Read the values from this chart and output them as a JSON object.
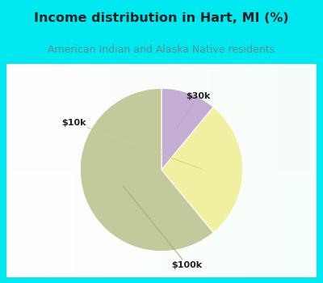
{
  "title": "Income distribution in Hart, MI (%)",
  "subtitle": "American Indian and Alaska Native residents",
  "slices": [
    {
      "label": "$30k",
      "value": 11,
      "color": "#c5aed4"
    },
    {
      "label": "$10k",
      "value": 28,
      "color": "#f0f0a0"
    },
    {
      "label": "$100k",
      "value": 61,
      "color": "#c2c99a"
    }
  ],
  "bg_cyan": "#00e8f0",
  "bg_chart": "#ffffff",
  "title_color": "#222222",
  "subtitle_color": "#5a9090",
  "title_fontsize": 11.5,
  "subtitle_fontsize": 9,
  "label_fontsize": 8,
  "startangle": 90,
  "chart_border": "#00e8f0",
  "label_color": "#222222"
}
